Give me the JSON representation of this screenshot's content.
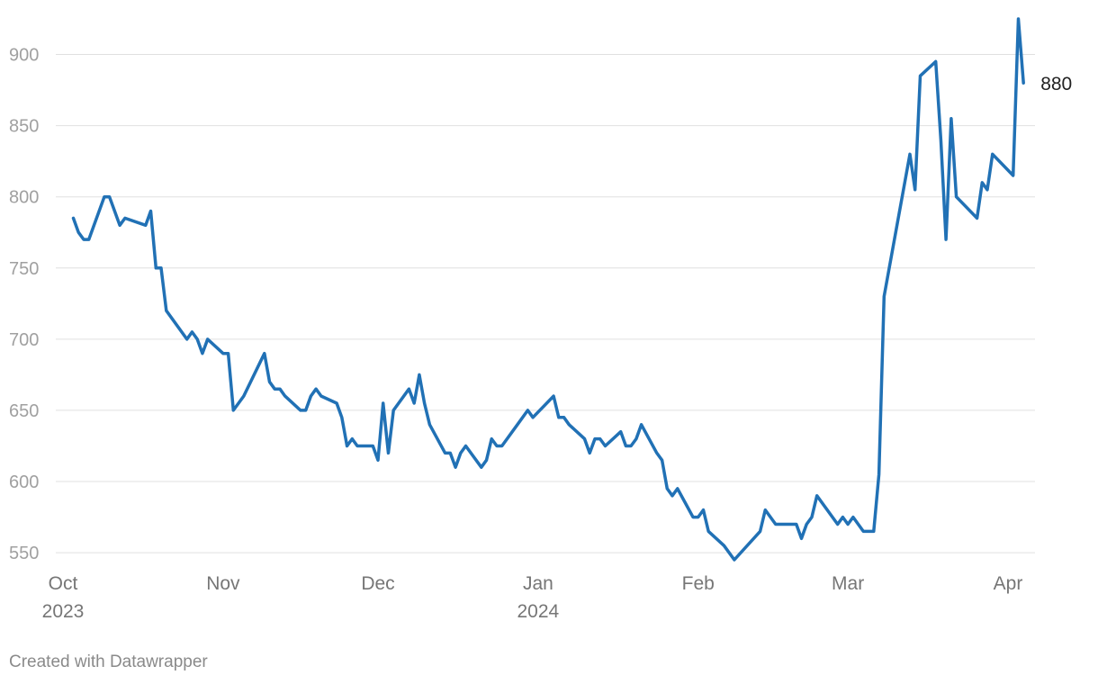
{
  "chart_data": {
    "type": "line",
    "title": "",
    "xlabel": "",
    "ylabel": "",
    "ylim": [
      540,
      930
    ],
    "xlim": [
      "2023-10-01",
      "2024-04-04"
    ],
    "grid": true,
    "y_ticks": [
      550,
      600,
      650,
      700,
      750,
      800,
      850,
      900
    ],
    "x_ticks": [
      {
        "date": "2023-10-01",
        "label": "Oct",
        "year": "2023"
      },
      {
        "date": "2023-11-01",
        "label": "Nov",
        "year": ""
      },
      {
        "date": "2023-12-01",
        "label": "Dec",
        "year": ""
      },
      {
        "date": "2024-01-01",
        "label": "Jan",
        "year": "2024"
      },
      {
        "date": "2024-02-01",
        "label": "Feb",
        "year": ""
      },
      {
        "date": "2024-03-01",
        "label": "Mar",
        "year": ""
      },
      {
        "date": "2024-04-01",
        "label": "Apr",
        "year": ""
      }
    ],
    "series": [
      {
        "color": "#2171b5",
        "end_label": "880",
        "points": [
          [
            "2023-10-03",
            785
          ],
          [
            "2023-10-04",
            775
          ],
          [
            "2023-10-05",
            770
          ],
          [
            "2023-10-06",
            770
          ],
          [
            "2023-10-09",
            800
          ],
          [
            "2023-10-10",
            800
          ],
          [
            "2023-10-12",
            780
          ],
          [
            "2023-10-13",
            785
          ],
          [
            "2023-10-17",
            780
          ],
          [
            "2023-10-18",
            790
          ],
          [
            "2023-10-19",
            750
          ],
          [
            "2023-10-20",
            750
          ],
          [
            "2023-10-21",
            720
          ],
          [
            "2023-10-25",
            700
          ],
          [
            "2023-10-26",
            705
          ],
          [
            "2023-10-27",
            700
          ],
          [
            "2023-10-28",
            690
          ],
          [
            "2023-10-29",
            700
          ],
          [
            "2023-11-01",
            690
          ],
          [
            "2023-11-02",
            690
          ],
          [
            "2023-11-03",
            650
          ],
          [
            "2023-11-05",
            660
          ],
          [
            "2023-11-09",
            690
          ],
          [
            "2023-11-10",
            670
          ],
          [
            "2023-11-11",
            665
          ],
          [
            "2023-11-12",
            665
          ],
          [
            "2023-11-13",
            660
          ],
          [
            "2023-11-16",
            650
          ],
          [
            "2023-11-17",
            650
          ],
          [
            "2023-11-18",
            660
          ],
          [
            "2023-11-19",
            665
          ],
          [
            "2023-11-20",
            660
          ],
          [
            "2023-11-23",
            655
          ],
          [
            "2023-11-24",
            645
          ],
          [
            "2023-11-25",
            625
          ],
          [
            "2023-11-26",
            630
          ],
          [
            "2023-11-27",
            625
          ],
          [
            "2023-11-30",
            625
          ],
          [
            "2023-12-01",
            615
          ],
          [
            "2023-12-02",
            655
          ],
          [
            "2023-12-03",
            620
          ],
          [
            "2023-12-04",
            650
          ],
          [
            "2023-12-07",
            665
          ],
          [
            "2023-12-08",
            655
          ],
          [
            "2023-12-09",
            675
          ],
          [
            "2023-12-10",
            655
          ],
          [
            "2023-12-11",
            640
          ],
          [
            "2023-12-14",
            620
          ],
          [
            "2023-12-15",
            620
          ],
          [
            "2023-12-16",
            610
          ],
          [
            "2023-12-17",
            620
          ],
          [
            "2023-12-18",
            625
          ],
          [
            "2023-12-21",
            610
          ],
          [
            "2023-12-22",
            615
          ],
          [
            "2023-12-23",
            630
          ],
          [
            "2023-12-24",
            625
          ],
          [
            "2023-12-25",
            625
          ],
          [
            "2023-12-28",
            640
          ],
          [
            "2023-12-30",
            650
          ],
          [
            "2023-12-31",
            645
          ],
          [
            "2024-01-04",
            660
          ],
          [
            "2024-01-05",
            645
          ],
          [
            "2024-01-06",
            645
          ],
          [
            "2024-01-07",
            640
          ],
          [
            "2024-01-10",
            630
          ],
          [
            "2024-01-11",
            620
          ],
          [
            "2024-01-12",
            630
          ],
          [
            "2024-01-13",
            630
          ],
          [
            "2024-01-14",
            625
          ],
          [
            "2024-01-17",
            635
          ],
          [
            "2024-01-18",
            625
          ],
          [
            "2024-01-19",
            625
          ],
          [
            "2024-01-20",
            630
          ],
          [
            "2024-01-21",
            640
          ],
          [
            "2024-01-24",
            620
          ],
          [
            "2024-01-25",
            615
          ],
          [
            "2024-01-26",
            595
          ],
          [
            "2024-01-27",
            590
          ],
          [
            "2024-01-28",
            595
          ],
          [
            "2024-01-31",
            575
          ],
          [
            "2024-02-01",
            575
          ],
          [
            "2024-02-02",
            580
          ],
          [
            "2024-02-03",
            565
          ],
          [
            "2024-02-06",
            555
          ],
          [
            "2024-02-08",
            545
          ],
          [
            "2024-02-13",
            565
          ],
          [
            "2024-02-14",
            580
          ],
          [
            "2024-02-16",
            570
          ],
          [
            "2024-02-20",
            570
          ],
          [
            "2024-02-21",
            560
          ],
          [
            "2024-02-22",
            570
          ],
          [
            "2024-02-23",
            575
          ],
          [
            "2024-02-24",
            590
          ],
          [
            "2024-02-28",
            570
          ],
          [
            "2024-02-29",
            575
          ],
          [
            "2024-03-01",
            570
          ],
          [
            "2024-03-02",
            575
          ],
          [
            "2024-03-04",
            565
          ],
          [
            "2024-03-06",
            565
          ],
          [
            "2024-03-07",
            605
          ],
          [
            "2024-03-08",
            730
          ],
          [
            "2024-03-13",
            830
          ],
          [
            "2024-03-14",
            805
          ],
          [
            "2024-03-15",
            885
          ],
          [
            "2024-03-18",
            895
          ],
          [
            "2024-03-19",
            840
          ],
          [
            "2024-03-20",
            770
          ],
          [
            "2024-03-21",
            855
          ],
          [
            "2024-03-22",
            800
          ],
          [
            "2024-03-26",
            785
          ],
          [
            "2024-03-27",
            810
          ],
          [
            "2024-03-28",
            805
          ],
          [
            "2024-03-29",
            830
          ],
          [
            "2024-04-02",
            815
          ],
          [
            "2024-04-03",
            925
          ],
          [
            "2024-04-04",
            880
          ]
        ]
      }
    ]
  },
  "footer": "Created with Datawrapper"
}
